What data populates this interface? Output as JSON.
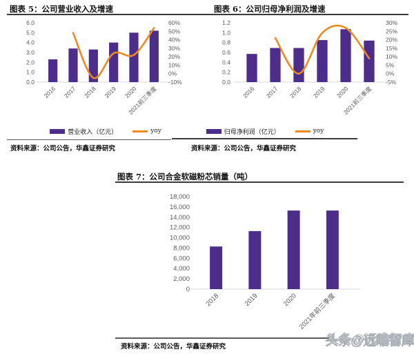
{
  "colors": {
    "bar": "#4D2D8C",
    "line": "#F0881E",
    "axis_text": "#595959",
    "baseline": "#d9d9d9"
  },
  "figures": [
    {
      "title": "图表 5：公司营业收入及增速",
      "source": "资料来源：公司公告，华鑫证券研究",
      "legend_bar": "营业收入（亿元）",
      "legend_line": "yoy"
    },
    {
      "title": "图表 6：公司归母净利润及增速",
      "source": "资料来源：公司公告，华鑫证券研究",
      "legend_bar": "归母净利润（亿元）",
      "legend_line": "yoy"
    },
    {
      "title": "图表 7：公司合金软磁粉芯销量（吨）",
      "source": "资料来源：公司公告，华鑫证券研究"
    }
  ],
  "watermark": "头条@远瞻智库",
  "chart_data": [
    {
      "type": "bar",
      "title": "图表 5：公司营业收入及增速",
      "categories": [
        "2016",
        "2017",
        "2018",
        "2019",
        "2020",
        "2021前三季度"
      ],
      "series": [
        {
          "name": "营业收入（亿元）",
          "type": "bar",
          "axis": "left",
          "values": [
            2.3,
            3.4,
            3.3,
            4.0,
            5.0,
            5.2
          ]
        },
        {
          "name": "yoy",
          "type": "line",
          "axis": "right",
          "unit": "%",
          "values": [
            null,
            48,
            -5,
            24,
            22,
            54
          ]
        }
      ],
      "left_axis": {
        "min": 0,
        "max": 6,
        "step": 1,
        "format": "1f"
      },
      "right_axis": {
        "min": -10,
        "max": 60,
        "step": 10,
        "format": "pct"
      },
      "legend_position": "bottom",
      "grid": false
    },
    {
      "type": "bar",
      "title": "图表 6：公司归母净利润及增速",
      "categories": [
        "2016",
        "2017",
        "2018",
        "2019",
        "2020",
        "2021前三季度"
      ],
      "series": [
        {
          "name": "归母净利润（亿元）",
          "type": "bar",
          "axis": "left",
          "values": [
            0.57,
            0.69,
            0.69,
            0.85,
            1.07,
            0.84
          ]
        },
        {
          "name": "yoy",
          "type": "line",
          "axis": "right",
          "unit": "%",
          "values": [
            null,
            21,
            0,
            24,
            27,
            9
          ]
        }
      ],
      "left_axis": {
        "min": 0,
        "max": 1.2,
        "step": 0.2,
        "format": "1f"
      },
      "right_axis": {
        "min": -5,
        "max": 30,
        "step": 5,
        "format": "pct"
      },
      "legend_position": "bottom",
      "grid": false
    },
    {
      "type": "bar",
      "title": "图表 7：公司合金软磁粉芯销量（吨）",
      "categories": [
        "2018",
        "2019",
        "2020",
        "2021年前三季度"
      ],
      "series": [
        {
          "name": "销量（吨）",
          "type": "bar",
          "axis": "left",
          "values": [
            8300,
            11300,
            15300,
            15300
          ]
        }
      ],
      "left_axis": {
        "min": 0,
        "max": 18000,
        "step": 2000,
        "format": "comma"
      },
      "legend_position": "none",
      "grid": false
    }
  ]
}
